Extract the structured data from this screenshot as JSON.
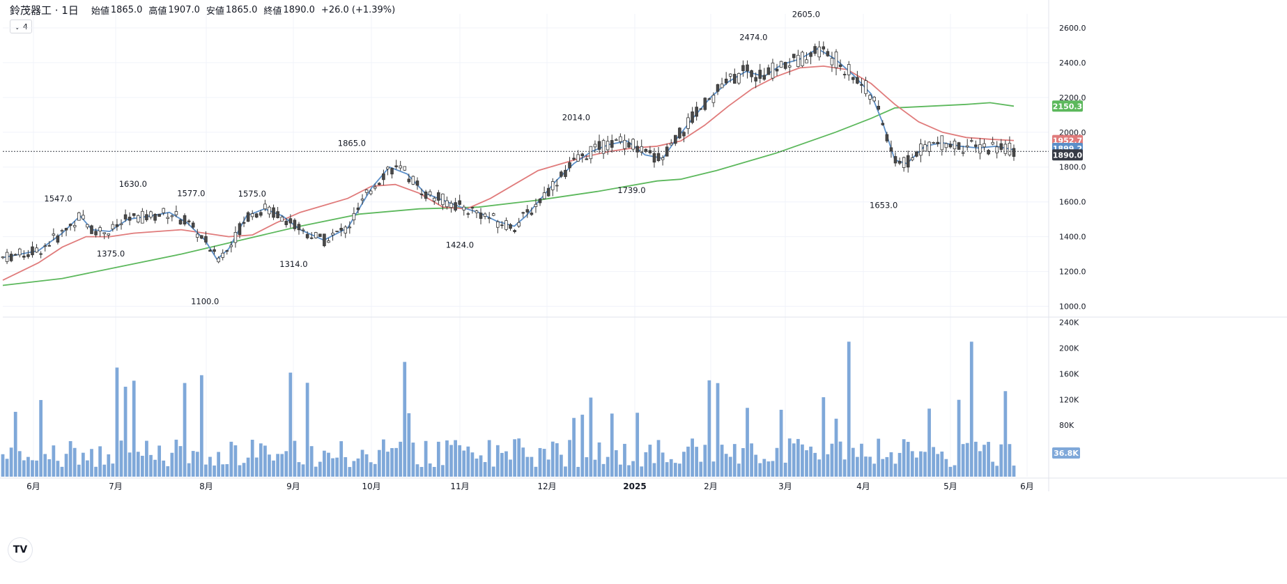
{
  "legend": {
    "symbol": "鈴茂器工 · 1日",
    "open_label": "始値",
    "open": "1865.0",
    "high_label": "高値",
    "high": "1907.0",
    "low_label": "安値",
    "low": "1865.0",
    "close_label": "終値",
    "close": "1890.0",
    "change": "+26.0 (+1.39%)",
    "collapse_count": "⌄ 4"
  },
  "logo_text": "TV",
  "colors": {
    "up": "#ffffff",
    "down": "#4a4a4a",
    "candle_outline": "#333333",
    "ma_fast": "#5b8fc9",
    "ma_mid": "#e07b7b",
    "ma_slow": "#5cb85c",
    "volume": "#7fa8d9",
    "last_price": "#363a45",
    "grid": "#f0f3fa"
  },
  "price_axis": {
    "ticks": [
      "2600.0",
      "2400.0",
      "2200.0",
      "2000.0",
      "1800.0",
      "1600.0",
      "1400.0",
      "1200.0",
      "1000.0"
    ],
    "badges": [
      {
        "value": "2150.3",
        "color": "#5cb85c",
        "price": 2150.3
      },
      {
        "value": "1952.7",
        "color": "#e07b7b",
        "price": 1952.7
      },
      {
        "value": "1899.2",
        "color": "#5b8fc9",
        "price": 1899.2
      },
      {
        "value": "1890.0",
        "color": "#363a45",
        "price": 1890.0
      }
    ]
  },
  "volume_axis": {
    "ticks": [
      "240K",
      "200K",
      "160K",
      "120K",
      "80K"
    ],
    "badge": {
      "value": "36.8K",
      "color": "#7fa8d9",
      "volume": 36800
    }
  },
  "time_axis": {
    "labels": [
      "6月",
      "7月",
      "8月",
      "9月",
      "10月",
      "11月",
      "12月",
      "2025",
      "2月",
      "3月",
      "4月",
      "5月",
      "6月"
    ]
  },
  "chart_data": {
    "type": "candlestick",
    "title": "鈴茂器工 · 1日",
    "x": [
      "2024-06",
      "2024-07",
      "2024-08",
      "2024-09",
      "2024-10",
      "2024-11",
      "2024-12",
      "2025-01",
      "2025-02",
      "2025-03",
      "2025-04",
      "2025-05"
    ],
    "ylim": [
      950,
      2680
    ],
    "ohlc_monthly": [
      {
        "month": "2024-06",
        "open": 1280,
        "high": 1547,
        "low": 1250,
        "close": 1440
      },
      {
        "month": "2024-07",
        "open": 1440,
        "high": 1630,
        "low": 1375,
        "close": 1470
      },
      {
        "month": "2024-08",
        "open": 1470,
        "high": 1577,
        "low": 1100,
        "close": 1520
      },
      {
        "month": "2024-09",
        "open": 1520,
        "high": 1865,
        "low": 1314,
        "close": 1780
      },
      {
        "month": "2024-10",
        "open": 1780,
        "high": 1800,
        "low": 1424,
        "close": 1500
      },
      {
        "month": "2024-11",
        "open": 1500,
        "high": 1900,
        "low": 1424,
        "close": 1880
      },
      {
        "month": "2024-12",
        "open": 1880,
        "high": 2014,
        "low": 1800,
        "close": 1870
      },
      {
        "month": "2025-01",
        "open": 1870,
        "high": 2150,
        "low": 1739,
        "close": 2100
      },
      {
        "month": "2025-02",
        "open": 2100,
        "high": 2474,
        "low": 2100,
        "close": 2430
      },
      {
        "month": "2025-03",
        "open": 2430,
        "high": 2605,
        "low": 2250,
        "close": 2300
      },
      {
        "month": "2025-04",
        "open": 2300,
        "high": 2320,
        "low": 1653,
        "close": 1950
      },
      {
        "month": "2025-05",
        "open": 1950,
        "high": 2000,
        "low": 1780,
        "close": 1890
      }
    ],
    "annotations": [
      {
        "text": "1547.0",
        "x": "2024-06-13",
        "price": 1547,
        "pos": "above"
      },
      {
        "text": "1630.0",
        "x": "2024-07-10",
        "price": 1630,
        "pos": "above"
      },
      {
        "text": "1375.0",
        "x": "2024-07-02",
        "price": 1375,
        "pos": "below"
      },
      {
        "text": "1577.0",
        "x": "2024-07-31",
        "price": 1577,
        "pos": "above"
      },
      {
        "text": "1100.0",
        "x": "2024-08-05",
        "price": 1100,
        "pos": "below"
      },
      {
        "text": "1575.0",
        "x": "2024-08-22",
        "price": 1575,
        "pos": "above"
      },
      {
        "text": "1314.0",
        "x": "2024-09-06",
        "price": 1314,
        "pos": "below"
      },
      {
        "text": "1865.0",
        "x": "2024-09-27",
        "price": 1865,
        "pos": "above"
      },
      {
        "text": "1424.0",
        "x": "2024-11-05",
        "price": 1424,
        "pos": "below"
      },
      {
        "text": "2014.0",
        "x": "2024-12-17",
        "price": 2014,
        "pos": "above"
      },
      {
        "text": "1739.0",
        "x": "2025-01-06",
        "price": 1739,
        "pos": "below"
      },
      {
        "text": "2474.0",
        "x": "2025-02-19",
        "price": 2474,
        "pos": "above"
      },
      {
        "text": "2605.0",
        "x": "2025-03-10",
        "price": 2605,
        "pos": "above"
      },
      {
        "text": "1653.0",
        "x": "2025-04-07",
        "price": 1653,
        "pos": "below"
      }
    ],
    "ma_fast_points": [
      [
        0,
        1280
      ],
      [
        0.06,
        1320
      ],
      [
        0.1,
        1420
      ],
      [
        0.13,
        1520
      ],
      [
        0.15,
        1440
      ],
      [
        0.18,
        1430
      ],
      [
        0.21,
        1500
      ],
      [
        0.25,
        1520
      ],
      [
        0.28,
        1540
      ],
      [
        0.31,
        1480
      ],
      [
        0.34,
        1380
      ],
      [
        0.36,
        1270
      ],
      [
        0.38,
        1330
      ],
      [
        0.41,
        1520
      ],
      [
        0.44,
        1560
      ],
      [
        0.47,
        1520
      ],
      [
        0.5,
        1440
      ],
      [
        0.54,
        1380
      ],
      [
        0.58,
        1450
      ],
      [
        0.62,
        1680
      ],
      [
        0.65,
        1800
      ],
      [
        0.68,
        1760
      ],
      [
        0.71,
        1650
      ],
      [
        0.74,
        1610
      ],
      [
        0.77,
        1570
      ],
      [
        0.8,
        1540
      ],
      [
        0.83,
        1490
      ],
      [
        0.86,
        1460
      ],
      [
        0.88,
        1520
      ],
      [
        0.9,
        1600
      ],
      [
        0.93,
        1720
      ],
      [
        0.96,
        1820
      ],
      [
        0.99,
        1890
      ],
      [
        1.02,
        1930
      ],
      [
        1.05,
        1950
      ],
      [
        1.08,
        1870
      ],
      [
        1.11,
        1850
      ],
      [
        1.13,
        1950
      ],
      [
        1.16,
        2080
      ],
      [
        1.19,
        2200
      ],
      [
        1.22,
        2290
      ],
      [
        1.25,
        2350
      ],
      [
        1.28,
        2320
      ],
      [
        1.31,
        2390
      ],
      [
        1.34,
        2420
      ],
      [
        1.37,
        2480
      ],
      [
        1.4,
        2420
      ],
      [
        1.43,
        2330
      ],
      [
        1.46,
        2220
      ],
      [
        1.48,
        2050
      ],
      [
        1.5,
        1840
      ],
      [
        1.52,
        1820
      ],
      [
        1.55,
        1920
      ],
      [
        1.58,
        1940
      ],
      [
        1.61,
        1920
      ],
      [
        1.64,
        1910
      ],
      [
        1.67,
        1920
      ],
      [
        1.7,
        1899
      ]
    ],
    "ma_mid_points": [
      [
        0,
        1150
      ],
      [
        0.06,
        1250
      ],
      [
        0.1,
        1340
      ],
      [
        0.14,
        1400
      ],
      [
        0.18,
        1400
      ],
      [
        0.22,
        1420
      ],
      [
        0.26,
        1430
      ],
      [
        0.3,
        1440
      ],
      [
        0.34,
        1420
      ],
      [
        0.38,
        1400
      ],
      [
        0.42,
        1410
      ],
      [
        0.46,
        1480
      ],
      [
        0.5,
        1540
      ],
      [
        0.54,
        1580
      ],
      [
        0.58,
        1620
      ],
      [
        0.62,
        1690
      ],
      [
        0.66,
        1700
      ],
      [
        0.7,
        1650
      ],
      [
        0.74,
        1570
      ],
      [
        0.78,
        1560
      ],
      [
        0.82,
        1620
      ],
      [
        0.86,
        1700
      ],
      [
        0.9,
        1780
      ],
      [
        0.94,
        1820
      ],
      [
        0.98,
        1860
      ],
      [
        1.02,
        1890
      ],
      [
        1.06,
        1910
      ],
      [
        1.1,
        1920
      ],
      [
        1.14,
        1950
      ],
      [
        1.18,
        2040
      ],
      [
        1.22,
        2150
      ],
      [
        1.26,
        2250
      ],
      [
        1.3,
        2320
      ],
      [
        1.34,
        2370
      ],
      [
        1.38,
        2380
      ],
      [
        1.42,
        2360
      ],
      [
        1.46,
        2280
      ],
      [
        1.5,
        2160
      ],
      [
        1.54,
        2060
      ],
      [
        1.58,
        2000
      ],
      [
        1.62,
        1970
      ],
      [
        1.66,
        1960
      ],
      [
        1.7,
        1952.7
      ]
    ],
    "ma_slow_points": [
      [
        0,
        1120
      ],
      [
        0.1,
        1160
      ],
      [
        0.2,
        1230
      ],
      [
        0.3,
        1300
      ],
      [
        0.4,
        1380
      ],
      [
        0.5,
        1460
      ],
      [
        0.6,
        1530
      ],
      [
        0.7,
        1560
      ],
      [
        0.8,
        1570
      ],
      [
        0.9,
        1610
      ],
      [
        1.0,
        1660
      ],
      [
        1.1,
        1720
      ],
      [
        1.14,
        1730
      ],
      [
        1.2,
        1780
      ],
      [
        1.3,
        1880
      ],
      [
        1.4,
        2000
      ],
      [
        1.46,
        2080
      ],
      [
        1.5,
        2140
      ],
      [
        1.56,
        2150
      ],
      [
        1.62,
        2160
      ],
      [
        1.66,
        2170
      ],
      [
        1.7,
        2150.3
      ]
    ],
    "volume_note": "daily volume bars (thousands)"
  }
}
